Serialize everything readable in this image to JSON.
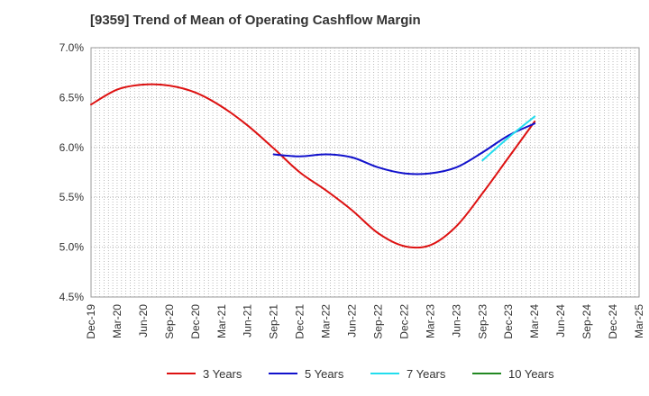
{
  "title": "[9359]  Trend of Mean of Operating Cashflow Margin",
  "chart_data": {
    "type": "line",
    "title": "[9359]  Trend of Mean of Operating Cashflow Margin",
    "xlabel": "",
    "ylabel": "",
    "categories": [
      "Dec-19",
      "Mar-20",
      "Jun-20",
      "Sep-20",
      "Dec-20",
      "Mar-21",
      "Jun-21",
      "Sep-21",
      "Dec-21",
      "Mar-22",
      "Jun-22",
      "Sep-22",
      "Dec-22",
      "Mar-23",
      "Jun-23",
      "Sep-23",
      "Dec-23",
      "Mar-24",
      "Jun-24",
      "Sep-24",
      "Dec-24",
      "Mar-25"
    ],
    "y_ticks": [
      "4.5%",
      "5.0%",
      "5.5%",
      "6.0%",
      "6.5%",
      "7.0%"
    ],
    "ylim": [
      4.5,
      7.0
    ],
    "grid": true,
    "legend_position": "bottom",
    "series": [
      {
        "name": "3 Years",
        "color": "#dd1111",
        "values": [
          6.43,
          6.58,
          6.63,
          6.62,
          6.55,
          6.41,
          6.22,
          5.99,
          5.75,
          5.57,
          5.37,
          5.14,
          5.01,
          5.02,
          5.21,
          5.54,
          5.9,
          6.26,
          null,
          null,
          null,
          null
        ]
      },
      {
        "name": "5 Years",
        "color": "#1111cc",
        "values": [
          null,
          null,
          null,
          null,
          null,
          null,
          null,
          5.93,
          5.91,
          5.93,
          5.9,
          5.8,
          5.74,
          5.74,
          5.8,
          5.95,
          6.12,
          6.24,
          null,
          null,
          null,
          null
        ]
      },
      {
        "name": "7 Years",
        "color": "#22ddee",
        "values": [
          null,
          null,
          null,
          null,
          null,
          null,
          null,
          null,
          null,
          null,
          null,
          null,
          null,
          null,
          null,
          5.87,
          6.1,
          6.31,
          null,
          null,
          null,
          null
        ]
      },
      {
        "name": "10 Years",
        "color": "#228822",
        "values": [
          null,
          null,
          null,
          null,
          null,
          null,
          null,
          null,
          null,
          null,
          null,
          null,
          null,
          null,
          null,
          null,
          null,
          null,
          null,
          null,
          null,
          null
        ]
      }
    ]
  }
}
